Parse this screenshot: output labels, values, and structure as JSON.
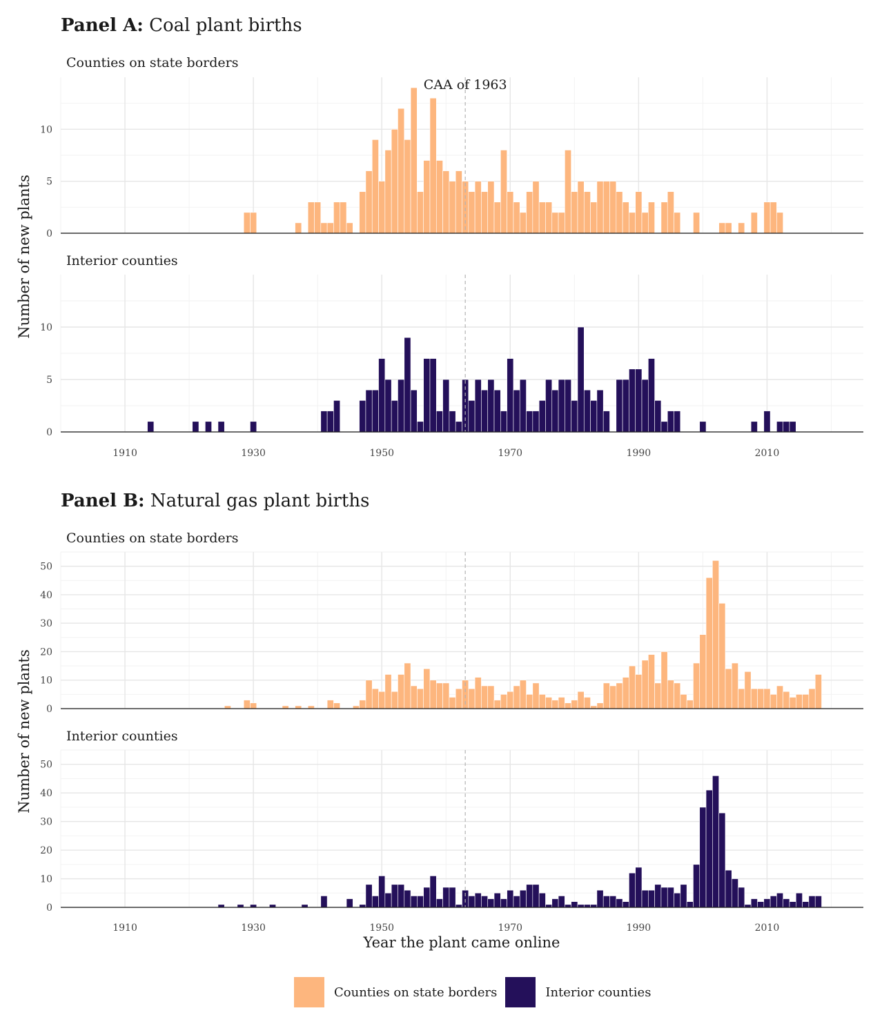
{
  "panels": {
    "a": {
      "tag": "Panel A:",
      "title": " Coal plant births"
    },
    "b": {
      "tag": "Panel B:",
      "title": " Natural gas plant births"
    }
  },
  "strips": {
    "border": "Counties on state borders",
    "interior": "Interior counties"
  },
  "axes": {
    "ylabel": "Number of new plants",
    "xlabel": "Year the plant came online"
  },
  "legend": [
    {
      "label": "Counties on state borders",
      "color": "#FDB67E"
    },
    {
      "label": "Interior counties",
      "color": "#24105A"
    }
  ],
  "annotation": {
    "label": "CAA of 1963",
    "year": 1963
  },
  "chart_data": [
    {
      "type": "bar",
      "panel": "Panel A",
      "facet": "Counties on state borders",
      "color": "#FDB67E",
      "xlim": [
        1900,
        2025
      ],
      "ylim": [
        0,
        15
      ],
      "xticks": [
        1910,
        1930,
        1950,
        1970,
        1990,
        2010
      ],
      "yticks": [
        0,
        5,
        10
      ],
      "grid": true,
      "points": [
        [
          1929,
          2
        ],
        [
          1930,
          2
        ],
        [
          1937,
          1
        ],
        [
          1939,
          3
        ],
        [
          1940,
          3
        ],
        [
          1941,
          1
        ],
        [
          1942,
          1
        ],
        [
          1943,
          3
        ],
        [
          1944,
          3
        ],
        [
          1945,
          1
        ],
        [
          1947,
          4
        ],
        [
          1948,
          6
        ],
        [
          1949,
          9
        ],
        [
          1950,
          5
        ],
        [
          1951,
          8
        ],
        [
          1952,
          10
        ],
        [
          1953,
          12
        ],
        [
          1954,
          9
        ],
        [
          1955,
          14
        ],
        [
          1956,
          4
        ],
        [
          1957,
          7
        ],
        [
          1958,
          13
        ],
        [
          1959,
          7
        ],
        [
          1960,
          6
        ],
        [
          1961,
          5
        ],
        [
          1962,
          6
        ],
        [
          1963,
          5
        ],
        [
          1964,
          4
        ],
        [
          1965,
          5
        ],
        [
          1966,
          4
        ],
        [
          1967,
          5
        ],
        [
          1968,
          3
        ],
        [
          1969,
          8
        ],
        [
          1970,
          4
        ],
        [
          1971,
          3
        ],
        [
          1972,
          2
        ],
        [
          1973,
          4
        ],
        [
          1974,
          5
        ],
        [
          1975,
          3
        ],
        [
          1976,
          3
        ],
        [
          1977,
          2
        ],
        [
          1978,
          2
        ],
        [
          1979,
          8
        ],
        [
          1980,
          4
        ],
        [
          1981,
          5
        ],
        [
          1982,
          4
        ],
        [
          1983,
          3
        ],
        [
          1984,
          5
        ],
        [
          1985,
          5
        ],
        [
          1986,
          5
        ],
        [
          1987,
          4
        ],
        [
          1988,
          3
        ],
        [
          1989,
          2
        ],
        [
          1990,
          4
        ],
        [
          1991,
          2
        ],
        [
          1992,
          3
        ],
        [
          1994,
          3
        ],
        [
          1995,
          4
        ],
        [
          1996,
          2
        ],
        [
          1999,
          2
        ],
        [
          2003,
          1
        ],
        [
          2004,
          1
        ],
        [
          2006,
          1
        ],
        [
          2008,
          2
        ],
        [
          2010,
          3
        ],
        [
          2011,
          3
        ],
        [
          2012,
          2
        ]
      ]
    },
    {
      "type": "bar",
      "panel": "Panel A",
      "facet": "Interior counties",
      "color": "#24105A",
      "xlim": [
        1900,
        2025
      ],
      "ylim": [
        0,
        15
      ],
      "xticks": [
        1910,
        1930,
        1950,
        1970,
        1990,
        2010
      ],
      "yticks": [
        0,
        5,
        10
      ],
      "grid": true,
      "points": [
        [
          1914,
          1
        ],
        [
          1921,
          1
        ],
        [
          1923,
          1
        ],
        [
          1925,
          1
        ],
        [
          1930,
          1
        ],
        [
          1941,
          2
        ],
        [
          1942,
          2
        ],
        [
          1943,
          3
        ],
        [
          1947,
          3
        ],
        [
          1948,
          4
        ],
        [
          1949,
          4
        ],
        [
          1950,
          7
        ],
        [
          1951,
          5
        ],
        [
          1952,
          3
        ],
        [
          1953,
          5
        ],
        [
          1954,
          9
        ],
        [
          1955,
          4
        ],
        [
          1956,
          1
        ],
        [
          1957,
          7
        ],
        [
          1958,
          7
        ],
        [
          1959,
          2
        ],
        [
          1960,
          5
        ],
        [
          1961,
          2
        ],
        [
          1962,
          1
        ],
        [
          1963,
          5
        ],
        [
          1964,
          3
        ],
        [
          1965,
          5
        ],
        [
          1966,
          4
        ],
        [
          1967,
          5
        ],
        [
          1968,
          4
        ],
        [
          1969,
          2
        ],
        [
          1970,
          7
        ],
        [
          1971,
          4
        ],
        [
          1972,
          5
        ],
        [
          1973,
          2
        ],
        [
          1974,
          2
        ],
        [
          1975,
          3
        ],
        [
          1976,
          5
        ],
        [
          1977,
          4
        ],
        [
          1978,
          5
        ],
        [
          1979,
          5
        ],
        [
          1980,
          3
        ],
        [
          1981,
          10
        ],
        [
          1982,
          4
        ],
        [
          1983,
          3
        ],
        [
          1984,
          4
        ],
        [
          1985,
          2
        ],
        [
          1987,
          5
        ],
        [
          1988,
          5
        ],
        [
          1989,
          6
        ],
        [
          1990,
          6
        ],
        [
          1991,
          5
        ],
        [
          1992,
          7
        ],
        [
          1993,
          3
        ],
        [
          1994,
          1
        ],
        [
          1995,
          2
        ],
        [
          1996,
          2
        ],
        [
          2000,
          1
        ],
        [
          2008,
          1
        ],
        [
          2010,
          2
        ],
        [
          2012,
          1
        ],
        [
          2013,
          1
        ],
        [
          2014,
          1
        ]
      ]
    },
    {
      "type": "bar",
      "panel": "Panel B",
      "facet": "Counties on state borders",
      "color": "#FDB67E",
      "xlim": [
        1900,
        2025
      ],
      "ylim": [
        0,
        55
      ],
      "xticks": [
        1910,
        1930,
        1950,
        1970,
        1990,
        2010
      ],
      "yticks": [
        0,
        10,
        20,
        30,
        40,
        50
      ],
      "grid": true,
      "points": [
        [
          1926,
          1
        ],
        [
          1929,
          3
        ],
        [
          1930,
          2
        ],
        [
          1935,
          1
        ],
        [
          1937,
          1
        ],
        [
          1939,
          1
        ],
        [
          1942,
          3
        ],
        [
          1943,
          2
        ],
        [
          1946,
          1
        ],
        [
          1947,
          3
        ],
        [
          1948,
          10
        ],
        [
          1949,
          7
        ],
        [
          1950,
          6
        ],
        [
          1951,
          12
        ],
        [
          1952,
          6
        ],
        [
          1953,
          12
        ],
        [
          1954,
          16
        ],
        [
          1955,
          8
        ],
        [
          1956,
          7
        ],
        [
          1957,
          14
        ],
        [
          1958,
          10
        ],
        [
          1959,
          9
        ],
        [
          1960,
          9
        ],
        [
          1961,
          4
        ],
        [
          1962,
          7
        ],
        [
          1963,
          10
        ],
        [
          1964,
          7
        ],
        [
          1965,
          11
        ],
        [
          1966,
          8
        ],
        [
          1967,
          8
        ],
        [
          1968,
          3
        ],
        [
          1969,
          5
        ],
        [
          1970,
          6
        ],
        [
          1971,
          8
        ],
        [
          1972,
          10
        ],
        [
          1973,
          5
        ],
        [
          1974,
          9
        ],
        [
          1975,
          5
        ],
        [
          1976,
          4
        ],
        [
          1977,
          3
        ],
        [
          1978,
          4
        ],
        [
          1979,
          2
        ],
        [
          1980,
          3
        ],
        [
          1981,
          6
        ],
        [
          1982,
          4
        ],
        [
          1983,
          1
        ],
        [
          1984,
          2
        ],
        [
          1985,
          9
        ],
        [
          1986,
          8
        ],
        [
          1987,
          9
        ],
        [
          1988,
          11
        ],
        [
          1989,
          15
        ],
        [
          1990,
          12
        ],
        [
          1991,
          17
        ],
        [
          1992,
          19
        ],
        [
          1993,
          9
        ],
        [
          1994,
          20
        ],
        [
          1995,
          10
        ],
        [
          1996,
          9
        ],
        [
          1997,
          5
        ],
        [
          1998,
          3
        ],
        [
          1999,
          16
        ],
        [
          2000,
          26
        ],
        [
          2001,
          46
        ],
        [
          2002,
          52
        ],
        [
          2003,
          37
        ],
        [
          2004,
          14
        ],
        [
          2005,
          16
        ],
        [
          2006,
          7
        ],
        [
          2007,
          13
        ],
        [
          2008,
          7
        ],
        [
          2009,
          7
        ],
        [
          2010,
          7
        ],
        [
          2011,
          5
        ],
        [
          2012,
          8
        ],
        [
          2013,
          6
        ],
        [
          2014,
          4
        ],
        [
          2015,
          5
        ],
        [
          2016,
          5
        ],
        [
          2017,
          7
        ],
        [
          2018,
          12
        ]
      ]
    },
    {
      "type": "bar",
      "panel": "Panel B",
      "facet": "Interior counties",
      "color": "#24105A",
      "xlim": [
        1900,
        2025
      ],
      "ylim": [
        0,
        55
      ],
      "xticks": [
        1910,
        1930,
        1950,
        1970,
        1990,
        2010
      ],
      "yticks": [
        0,
        10,
        20,
        30,
        40,
        50
      ],
      "grid": true,
      "points": [
        [
          1925,
          1
        ],
        [
          1928,
          1
        ],
        [
          1930,
          1
        ],
        [
          1933,
          1
        ],
        [
          1938,
          1
        ],
        [
          1941,
          4
        ],
        [
          1945,
          3
        ],
        [
          1947,
          1
        ],
        [
          1948,
          8
        ],
        [
          1949,
          4
        ],
        [
          1950,
          11
        ],
        [
          1951,
          5
        ],
        [
          1952,
          8
        ],
        [
          1953,
          8
        ],
        [
          1954,
          6
        ],
        [
          1955,
          4
        ],
        [
          1956,
          4
        ],
        [
          1957,
          7
        ],
        [
          1958,
          11
        ],
        [
          1959,
          3
        ],
        [
          1960,
          7
        ],
        [
          1961,
          7
        ],
        [
          1962,
          1
        ],
        [
          1963,
          6
        ],
        [
          1964,
          4
        ],
        [
          1965,
          5
        ],
        [
          1966,
          4
        ],
        [
          1967,
          3
        ],
        [
          1968,
          5
        ],
        [
          1969,
          3
        ],
        [
          1970,
          6
        ],
        [
          1971,
          4
        ],
        [
          1972,
          6
        ],
        [
          1973,
          8
        ],
        [
          1974,
          8
        ],
        [
          1975,
          5
        ],
        [
          1976,
          1
        ],
        [
          1977,
          3
        ],
        [
          1978,
          4
        ],
        [
          1979,
          1
        ],
        [
          1980,
          2
        ],
        [
          1981,
          1
        ],
        [
          1982,
          1
        ],
        [
          1983,
          1
        ],
        [
          1984,
          6
        ],
        [
          1985,
          4
        ],
        [
          1986,
          4
        ],
        [
          1987,
          3
        ],
        [
          1988,
          2
        ],
        [
          1989,
          12
        ],
        [
          1990,
          14
        ],
        [
          1991,
          6
        ],
        [
          1992,
          6
        ],
        [
          1993,
          8
        ],
        [
          1994,
          7
        ],
        [
          1995,
          7
        ],
        [
          1996,
          5
        ],
        [
          1997,
          8
        ],
        [
          1998,
          2
        ],
        [
          1999,
          15
        ],
        [
          2000,
          35
        ],
        [
          2001,
          41
        ],
        [
          2002,
          46
        ],
        [
          2003,
          33
        ],
        [
          2004,
          13
        ],
        [
          2005,
          10
        ],
        [
          2006,
          7
        ],
        [
          2007,
          1
        ],
        [
          2008,
          3
        ],
        [
          2009,
          2
        ],
        [
          2010,
          3
        ],
        [
          2011,
          4
        ],
        [
          2012,
          5
        ],
        [
          2013,
          3
        ],
        [
          2014,
          2
        ],
        [
          2015,
          5
        ],
        [
          2016,
          2
        ],
        [
          2017,
          4
        ],
        [
          2018,
          4
        ]
      ]
    }
  ]
}
